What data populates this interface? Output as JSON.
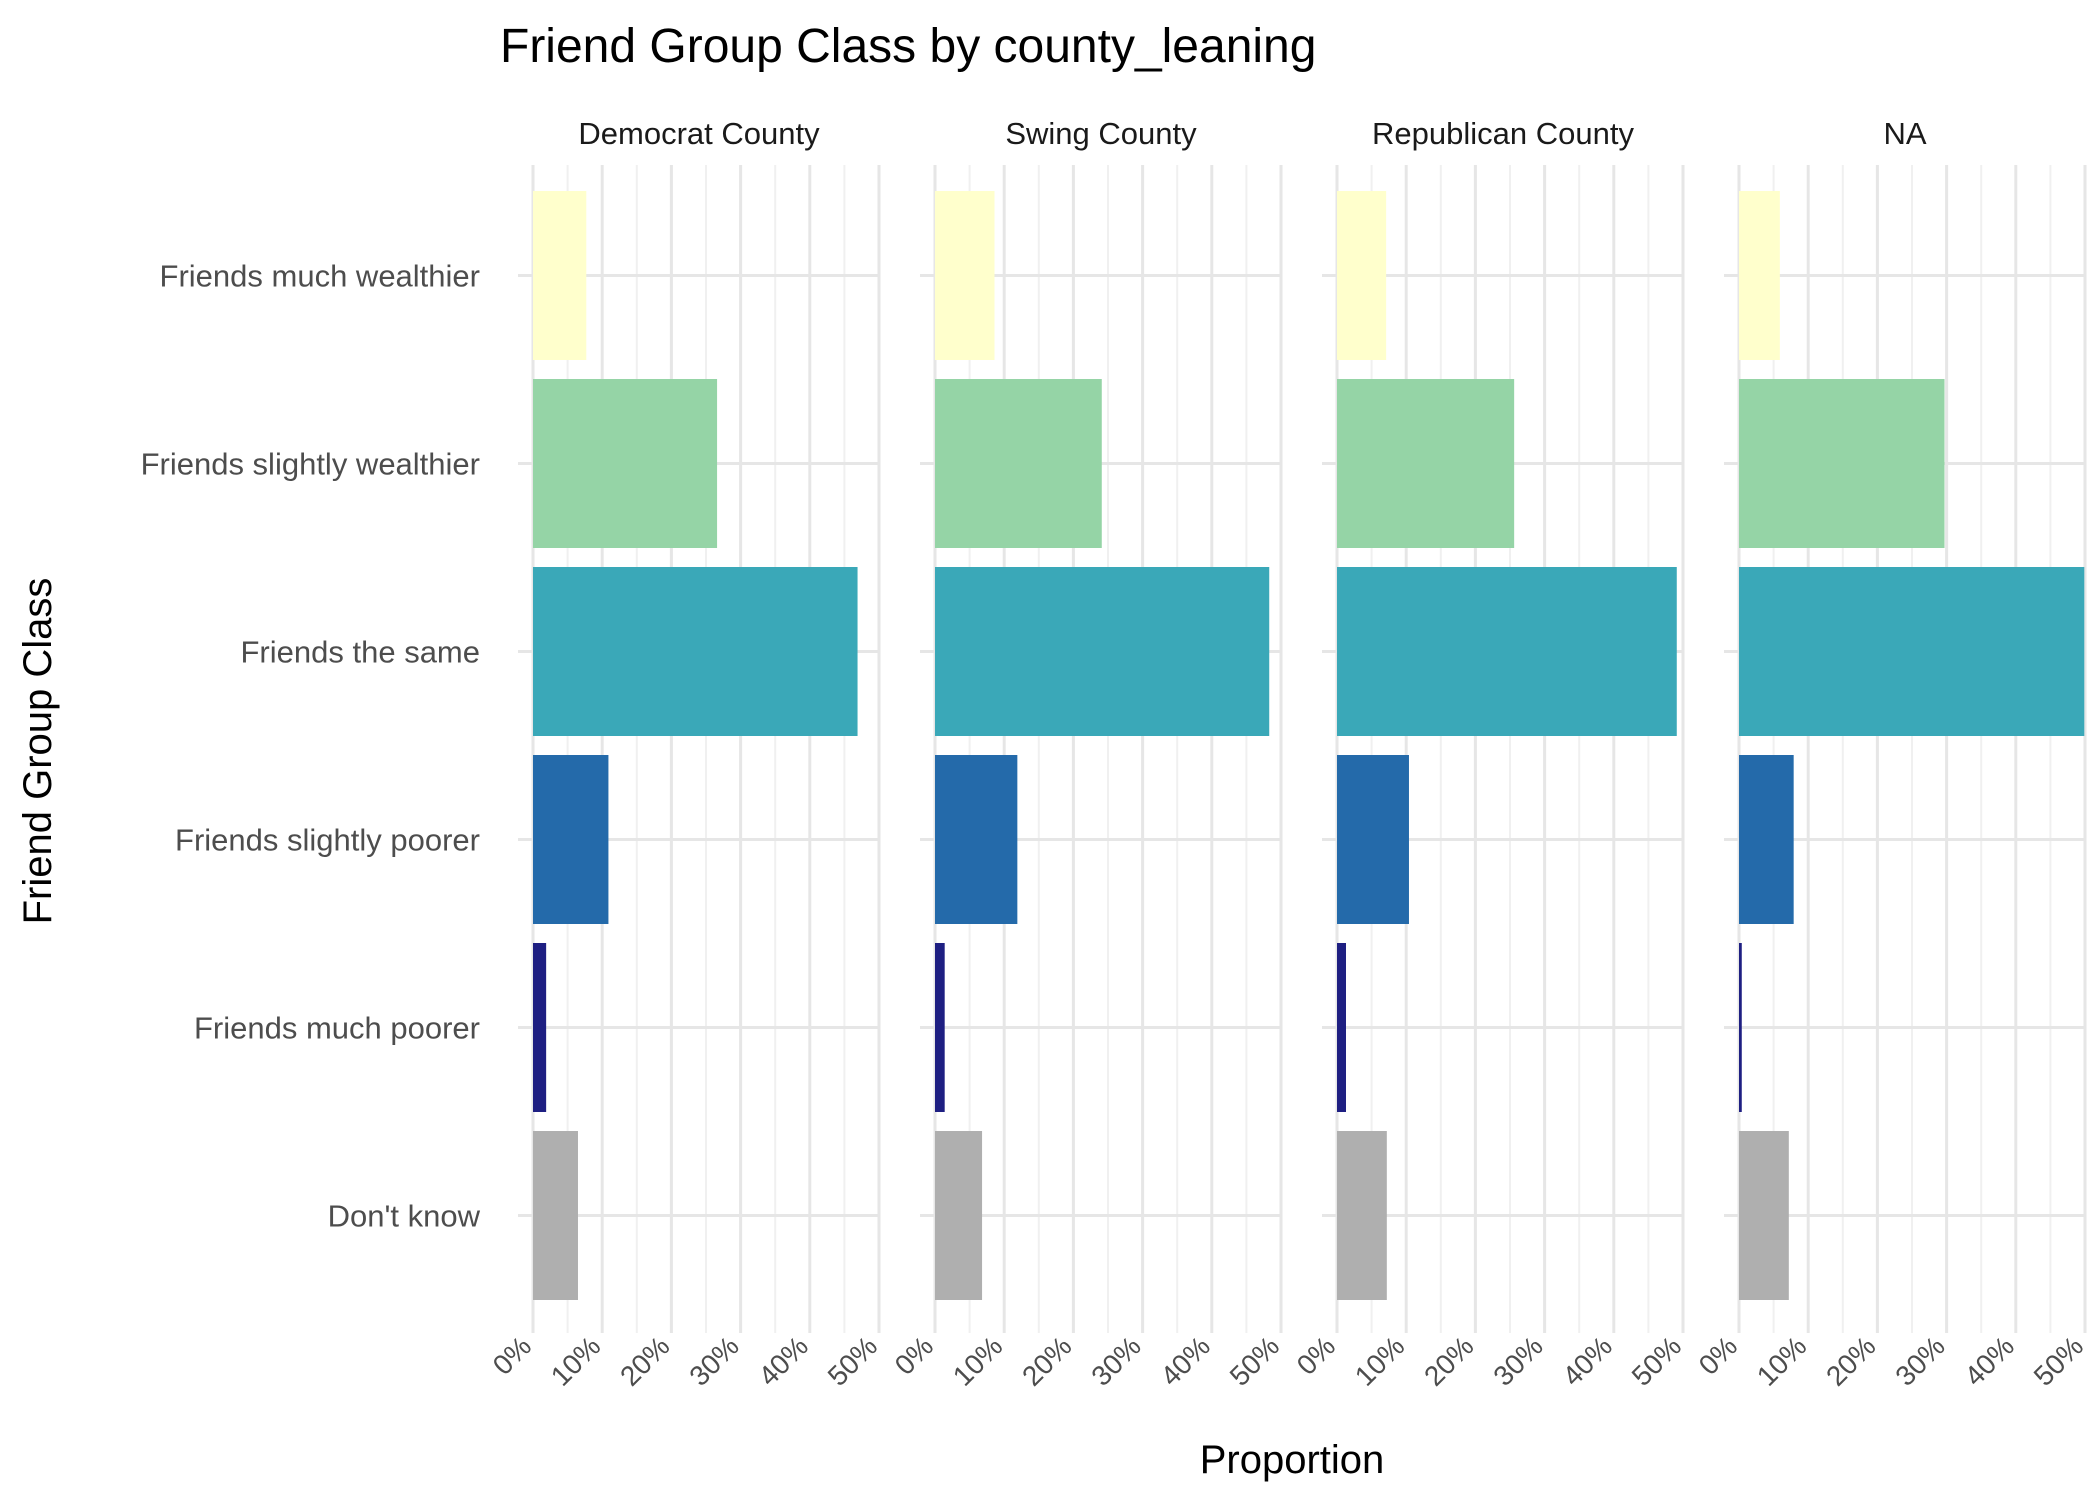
{
  "chart_data": {
    "type": "bar",
    "orientation": "horizontal",
    "title": "Friend Group Class by county_leaning",
    "xlabel": "Proportion",
    "ylabel": "Friend Group Class",
    "xlim": [
      0,
      0.5
    ],
    "x_ticks": [
      0,
      0.1,
      0.2,
      0.3,
      0.4,
      0.5
    ],
    "x_tick_labels": [
      "0%",
      "10%",
      "20%",
      "30%",
      "40%",
      "50%"
    ],
    "grid": true,
    "legend": "none",
    "categories": [
      "Friends much wealthier",
      "Friends slightly wealthier",
      "Friends the same",
      "Friends slightly poorer",
      "Friends much poorer",
      "Don't know"
    ],
    "colors": [
      "#ffffcc",
      "#95d4a6",
      "#3aa8b8",
      "#246aaa",
      "#1e1f82",
      "#afafaf"
    ],
    "facets": [
      {
        "name": "Democrat County",
        "values": [
          0.077,
          0.266,
          0.469,
          0.109,
          0.019,
          0.065
        ]
      },
      {
        "name": "Swing County",
        "values": [
          0.086,
          0.241,
          0.483,
          0.119,
          0.014,
          0.068
        ]
      },
      {
        "name": "Republican County",
        "values": [
          0.071,
          0.256,
          0.491,
          0.104,
          0.013,
          0.072
        ]
      },
      {
        "name": "NA",
        "values": [
          0.059,
          0.297,
          0.499,
          0.079,
          0.004,
          0.072
        ]
      }
    ]
  }
}
